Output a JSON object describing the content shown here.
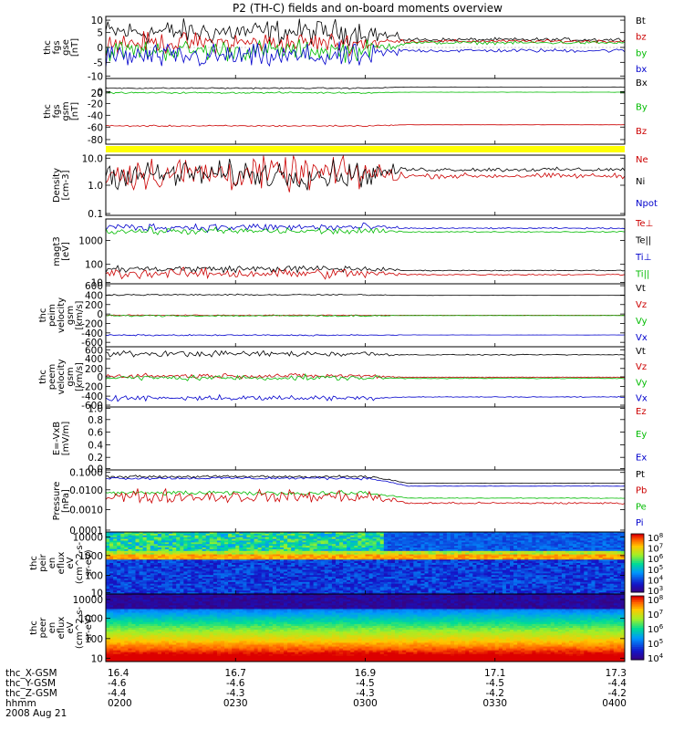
{
  "title": "P2 (TH-C) fields and on-board moments overview",
  "footer": {
    "row_labels": [
      "thc_X-GSM",
      "thc_Y-GSM",
      "thc_Z-GSM",
      "hhmm"
    ],
    "date": "2008 Aug 21",
    "columns": [
      {
        "x": "16.4",
        "y": "-4.6",
        "z": "-4.4",
        "t": "0200"
      },
      {
        "x": "16.7",
        "y": "-4.6",
        "z": "-4.3",
        "t": "0230"
      },
      {
        "x": "16.9",
        "y": "-4.5",
        "z": "-4.3",
        "t": "0300"
      },
      {
        "x": "17.1",
        "y": "-4.5",
        "z": "-4.2",
        "t": "0330"
      },
      {
        "x": "17.3",
        "y": "-4.4",
        "z": "-4.2",
        "t": "0400"
      }
    ]
  },
  "chart_data": {
    "type": "line",
    "x_range": [
      "0200",
      "0400"
    ],
    "panels": [
      {
        "id": "fgs",
        "type": "line",
        "ylabel": [
          "thc",
          "fgs",
          "gse",
          "[nT]"
        ],
        "yticks": [
          "10",
          "5",
          "0",
          "-5",
          "-10"
        ],
        "ylim": [
          -10,
          10
        ],
        "legend": [
          {
            "name": "Bt",
            "color": "#000000"
          },
          {
            "name": "bz",
            "color": "#cc0000"
          },
          {
            "name": "by",
            "color": "#00bb00"
          },
          {
            "name": "bx",
            "color": "#0000cc"
          }
        ],
        "series": [
          {
            "name": "Bt",
            "before": 5,
            "after": 2.5,
            "noise": 3
          },
          {
            "name": "bz",
            "before": 1.5,
            "after": 2,
            "noise": 2.5
          },
          {
            "name": "by",
            "before": -1,
            "after": 1.5,
            "noise": 2.5
          },
          {
            "name": "bx",
            "before": -3,
            "after": -1,
            "noise": 3
          }
        ]
      },
      {
        "id": "fgs_gsm",
        "type": "line",
        "ylabel": [
          "thc",
          "fgs",
          "gsm",
          "[nT]"
        ],
        "yticks": [
          "20",
          "0",
          "-20",
          "-40",
          "-60",
          "-80"
        ],
        "ylim": [
          -90,
          25
        ],
        "legend": [
          {
            "name": "Bx",
            "color": "#000000"
          },
          {
            "name": "By",
            "color": "#00bb00"
          },
          {
            "name": "Bz",
            "color": "#cc0000"
          }
        ],
        "series": [
          {
            "name": "Bx",
            "before": 8,
            "after": 10,
            "noise": 0.8
          },
          {
            "name": "By",
            "before": 0,
            "after": 1,
            "noise": 1
          },
          {
            "name": "Bz",
            "before": -58,
            "after": -56,
            "noise": 1
          }
        ]
      },
      {
        "id": "density",
        "type": "line",
        "scale": "log",
        "ylabel": [
          "Density",
          "[cm-3]"
        ],
        "yticks": [
          "10.0",
          "1.0",
          "0.1"
        ],
        "ylim": [
          0.1,
          12
        ],
        "legend": [
          {
            "name": "Ne",
            "color": "#cc0000"
          },
          {
            "name": "Ni",
            "color": "#000000"
          },
          {
            "name": "Npot",
            "color": "#0000cc"
          }
        ],
        "series": [
          {
            "name": "Ne",
            "before": 2.8,
            "after": 2.3,
            "noise": 0.45
          },
          {
            "name": "Ni",
            "before": 2.6,
            "after": 3.8,
            "noise": 0.35
          }
        ]
      },
      {
        "id": "temperature",
        "type": "line",
        "scale": "log",
        "ylabel": [
          "magt3",
          "[eV]"
        ],
        "yticks": [
          "1000",
          "100",
          "10"
        ],
        "ylim": [
          8,
          2500
        ],
        "legend": [
          {
            "name": "Te⊥",
            "color": "#cc0000"
          },
          {
            "name": "Te||",
            "color": "#000000"
          },
          {
            "name": "Ti⊥",
            "color": "#0000cc"
          },
          {
            "name": "Ti||",
            "color": "#00bb00"
          }
        ],
        "series": [
          {
            "name": "Ti⊥",
            "before": 1200,
            "after": 1100,
            "noise": 0.12
          },
          {
            "name": "Ti||",
            "before": 850,
            "after": 800,
            "noise": 0.1
          },
          {
            "name": "Te||",
            "before": 30,
            "after": 26,
            "noise": 0.1
          },
          {
            "name": "Te⊥",
            "before": 20,
            "after": 18,
            "noise": 0.15
          }
        ]
      },
      {
        "id": "peim_velocity",
        "type": "line",
        "ylabel": [
          "thc",
          "peim",
          "velocity",
          "gsm",
          "[km/s]"
        ],
        "yticks": [
          "600",
          "400",
          "200",
          "0",
          "-200",
          "-400",
          "-600"
        ],
        "ylim": [
          -600,
          600
        ],
        "legend": [
          {
            "name": "Vt",
            "color": "#000000"
          },
          {
            "name": "Vz",
            "color": "#cc0000"
          },
          {
            "name": "Vy",
            "color": "#00bb00"
          },
          {
            "name": "Vx",
            "color": "#0000cc"
          }
        ],
        "series": [
          {
            "name": "Vt",
            "before": 390,
            "after": 380,
            "noise": 10
          },
          {
            "name": "Vz",
            "before": 0,
            "after": 0,
            "noise": 8
          },
          {
            "name": "Vy",
            "before": -10,
            "after": -5,
            "noise": 12
          },
          {
            "name": "Vx",
            "before": -380,
            "after": -375,
            "noise": 10
          }
        ]
      },
      {
        "id": "peem_velocity",
        "type": "line",
        "ylabel": [
          "thc",
          "peem",
          "velocity",
          "gsm",
          "[km/s]"
        ],
        "yticks": [
          "600",
          "400",
          "200",
          "0",
          "-200",
          "-400",
          "-600"
        ],
        "ylim": [
          -600,
          600
        ],
        "legend": [
          {
            "name": "Vt",
            "color": "#000000"
          },
          {
            "name": "Vz",
            "color": "#cc0000"
          },
          {
            "name": "Vy",
            "color": "#00bb00"
          },
          {
            "name": "Vx",
            "color": "#0000cc"
          }
        ],
        "series": [
          {
            "name": "Vt",
            "before": 460,
            "after": 440,
            "noise": 45
          },
          {
            "name": "Vz",
            "before": 20,
            "after": -10,
            "noise": 35
          },
          {
            "name": "Vy",
            "before": -20,
            "after": -30,
            "noise": 40
          },
          {
            "name": "Vx",
            "before": -420,
            "after": -400,
            "noise": 40
          }
        ]
      },
      {
        "id": "efield",
        "type": "line",
        "ylabel": [
          "E=-VxB",
          "[mV/m]"
        ],
        "yticks": [
          "1.0",
          "0.8",
          "0.6",
          "0.4",
          "0.2",
          "0.0"
        ],
        "ylim": [
          0,
          1
        ],
        "legend": [
          {
            "name": "Ez",
            "color": "#cc0000"
          },
          {
            "name": "Ey",
            "color": "#00bb00"
          },
          {
            "name": "Ex",
            "color": "#0000cc"
          }
        ],
        "series": []
      },
      {
        "id": "pressure",
        "type": "line",
        "scale": "log",
        "ylabel": [
          "Pressure",
          "[nPa]"
        ],
        "yticks": [
          "0.1000",
          "0.0100",
          "0.0010",
          "0.0001"
        ],
        "ylim": [
          0.0001,
          0.13
        ],
        "legend": [
          {
            "name": "Pt",
            "color": "#000000"
          },
          {
            "name": "Pb",
            "color": "#cc0000"
          },
          {
            "name": "Pe",
            "color": "#00bb00"
          },
          {
            "name": "Pi",
            "color": "#0000cc"
          }
        ],
        "series": [
          {
            "name": "Pt",
            "before": 0.06,
            "after": 0.028,
            "noise": 0.05
          },
          {
            "name": "Pi",
            "before": 0.05,
            "after": 0.02,
            "noise": 0.05
          },
          {
            "name": "Pe",
            "before": 0.009,
            "after": 0.005,
            "noise": 0.08
          },
          {
            "name": "Pb",
            "before": 0.006,
            "after": 0.0028,
            "noise": 0.25
          }
        ]
      },
      {
        "id": "peir_eflux",
        "type": "heatmap",
        "ylabel": [
          "thc",
          "peir",
          "en",
          "eflux",
          "eV",
          "(cm^2-s-",
          "sr-eV)"
        ],
        "yticks": [
          "10000",
          "1000",
          "100",
          "10"
        ],
        "colorbar_ticks": [
          "10^8",
          "10^7",
          "10^6",
          "10^5",
          "10^4",
          "10^3"
        ]
      },
      {
        "id": "peer_eflux",
        "type": "heatmap",
        "ylabel": [
          "thc",
          "peer",
          "en",
          "eflux",
          "eV",
          "(cm^2-s-",
          "sr-eV)"
        ],
        "yticks": [
          "10000",
          "1000",
          "100",
          "10"
        ],
        "colorbar_ticks": [
          "10^8",
          "10^7",
          "10^6",
          "10^5",
          "10^4"
        ]
      }
    ]
  }
}
